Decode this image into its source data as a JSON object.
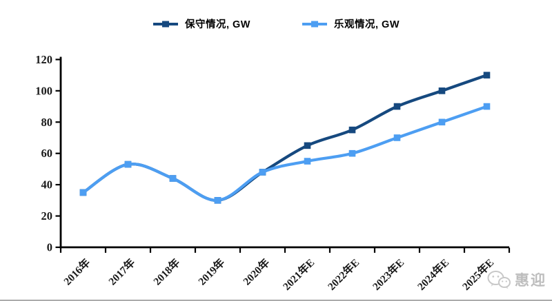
{
  "chart_data": {
    "type": "line",
    "title": "",
    "categories": [
      "2016年",
      "2017年",
      "2018年",
      "2019年",
      "2020年",
      "2021年E",
      "2022年E",
      "2023年E",
      "2024年E",
      "2025年E"
    ],
    "series": [
      {
        "name": "保守情况, GW",
        "color": "#16497F",
        "values": [
          35,
          53,
          44,
          30,
          48,
          65,
          75,
          90,
          100,
          110
        ]
      },
      {
        "name": "乐观情况, GW",
        "color": "#4D9EF2",
        "values": [
          35,
          53,
          44,
          30,
          48,
          55,
          60,
          70,
          80,
          90
        ]
      }
    ],
    "xlabel": "",
    "ylabel": "",
    "ylim": [
      0,
      120
    ],
    "ytick_step": 20,
    "yticks": [
      0,
      20,
      40,
      60,
      80,
      100,
      120
    ],
    "grid": false,
    "legend_position": "top",
    "smooth": true,
    "marker": "square",
    "axis_color": "#000000"
  },
  "watermark": {
    "icon": "wechat-icon",
    "text": "惠迎"
  }
}
